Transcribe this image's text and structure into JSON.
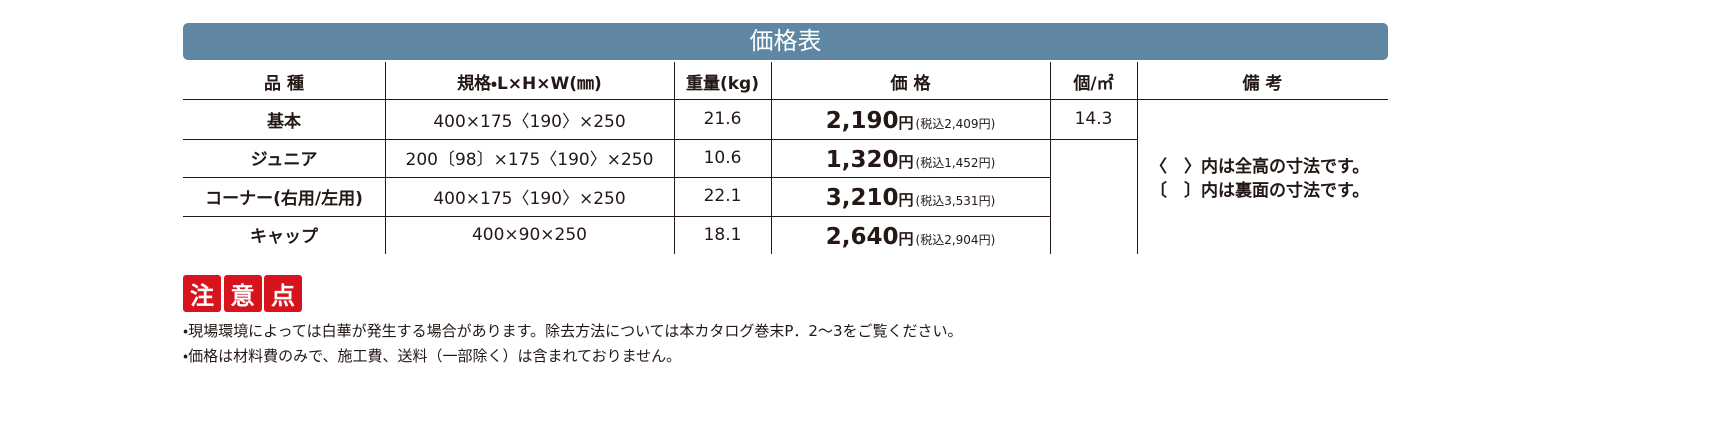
{
  "title": "価格表",
  "table": {
    "headers": [
      "品 種",
      "規格・L×H×W(㎜)",
      "重量(kg)",
      "価 格",
      "個/㎡",
      "備 考"
    ],
    "rows": [
      {
        "name": "基本",
        "size": "400×175〈190〉×250",
        "weight": "21.6",
        "price": "2,190",
        "price_unit": "円",
        "tax_included": "(税込2,409円)"
      },
      {
        "name": "ジュニア",
        "size": "200〔98〕×175〈190〉×250",
        "weight": "10.6",
        "price": "1,320",
        "price_unit": "円",
        "tax_included": "(税込1,452円)"
      },
      {
        "name": "コーナー(右用/左用)",
        "size": "400×175〈190〉×250",
        "weight": "22.1",
        "price": "3,210",
        "price_unit": "円",
        "tax_included": "(税込3,531円)"
      },
      {
        "name": "キャップ",
        "size": "400×90×250",
        "weight": "18.1",
        "price": "2,640",
        "price_unit": "円",
        "tax_included": "(税込2,904円)"
      }
    ],
    "per_m2": "14.3",
    "remarks": [
      "〈　〉内は全高の寸法です。",
      "〔　〕内は裏面の寸法です。"
    ]
  },
  "caution": {
    "badges": [
      "注",
      "意",
      "点"
    ],
    "notes": [
      "・現場環境によっては白華が発生する場合があります。除去方法については本カタログ巻末P．2～3をご覧ください。",
      "・価格は材料費のみで、施工費、送料（一部除く）は含まれておりません。"
    ]
  }
}
